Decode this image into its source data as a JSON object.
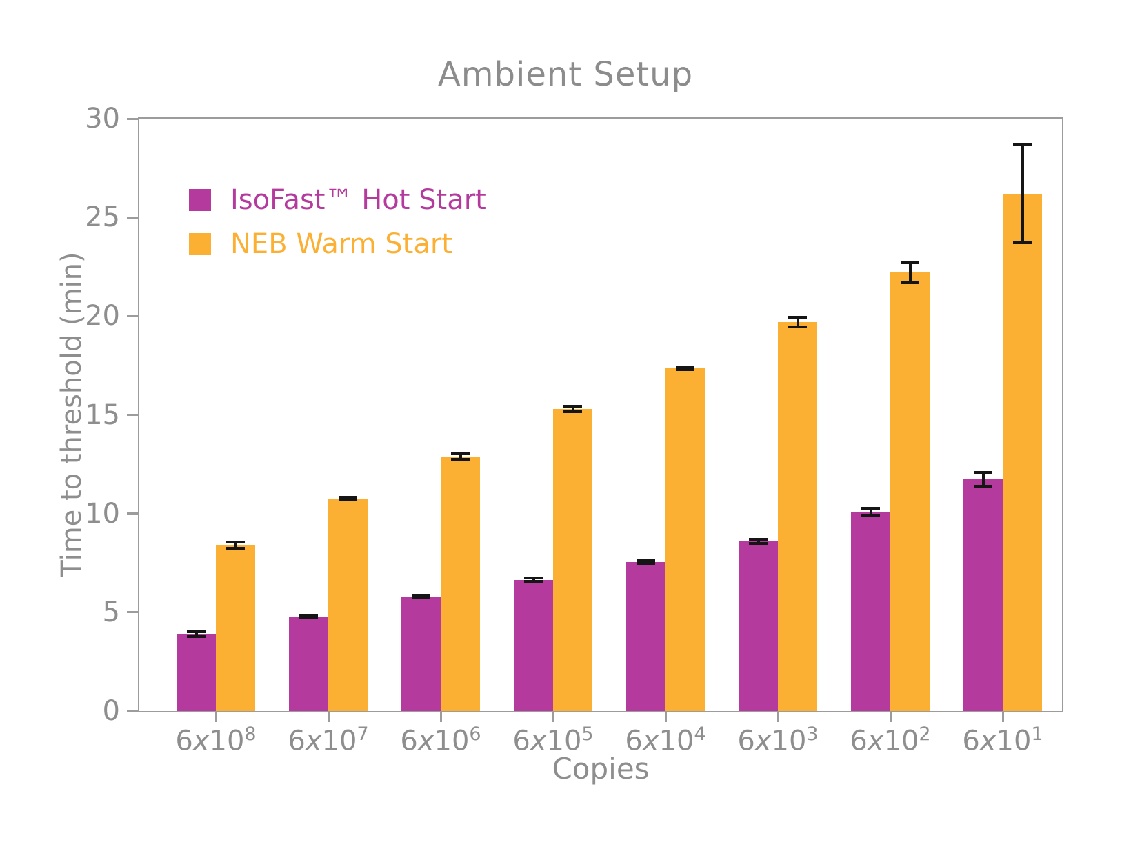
{
  "chart_data": {
    "type": "bar",
    "title": "Ambient Setup",
    "xlabel": "Copies",
    "ylabel": "Time to threshold (min)",
    "ylim": [
      0,
      30
    ],
    "yticks": [
      0,
      5,
      10,
      15,
      20,
      25,
      30
    ],
    "categories": [
      "6x10^8",
      "6x10^7",
      "6x10^6",
      "6x10^5",
      "6x10^4",
      "6x10^3",
      "6x10^2",
      "6x10^1"
    ],
    "legend_position": "upper left inside",
    "grid": false,
    "series": [
      {
        "name": "IsoFast™ Hot Start",
        "color": "#b53a9e",
        "values": [
          3.9,
          4.8,
          5.8,
          6.65,
          7.55,
          8.6,
          10.1,
          11.75
        ],
        "errors": [
          0.12,
          0.07,
          0.08,
          0.08,
          0.08,
          0.1,
          0.18,
          0.35
        ]
      },
      {
        "name": "NEB Warm Start",
        "color": "#fbb034",
        "values": [
          8.4,
          10.75,
          12.9,
          15.3,
          17.35,
          19.7,
          22.2,
          26.2
        ],
        "errors": [
          0.15,
          0.06,
          0.15,
          0.15,
          0.06,
          0.25,
          0.5,
          2.5
        ]
      }
    ],
    "error_bar_color": "#151515",
    "axis_color": "#9c9c9c",
    "text_color": "#8e8e8e"
  }
}
